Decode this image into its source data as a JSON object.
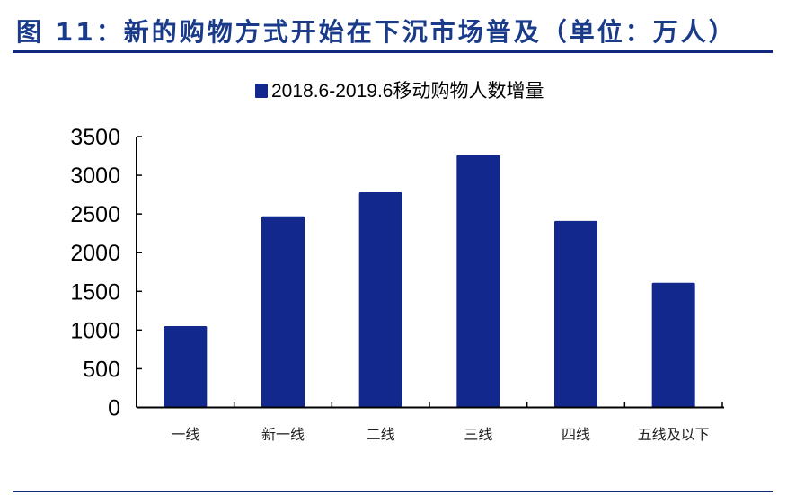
{
  "figure_title": "图 11：新的购物方式开始在下沉市场普及（单位：万人）",
  "colors": {
    "bar": "#12288d",
    "title": "#1a3a8a",
    "rule": "#12287e"
  },
  "chart_data": {
    "type": "bar",
    "categories": [
      "一线",
      "新一线",
      "二线",
      "三线",
      "四线",
      "五线及以下"
    ],
    "series": [
      {
        "name": "2018.6-2019.6移动购物人数增量",
        "values": [
          1050,
          2470,
          2780,
          3260,
          2410,
          1610
        ]
      }
    ],
    "ylim": [
      0,
      3500
    ],
    "yticks": [
      0,
      500,
      1000,
      1500,
      2000,
      2500,
      3000,
      3500
    ],
    "grid": false,
    "legend": "top"
  }
}
